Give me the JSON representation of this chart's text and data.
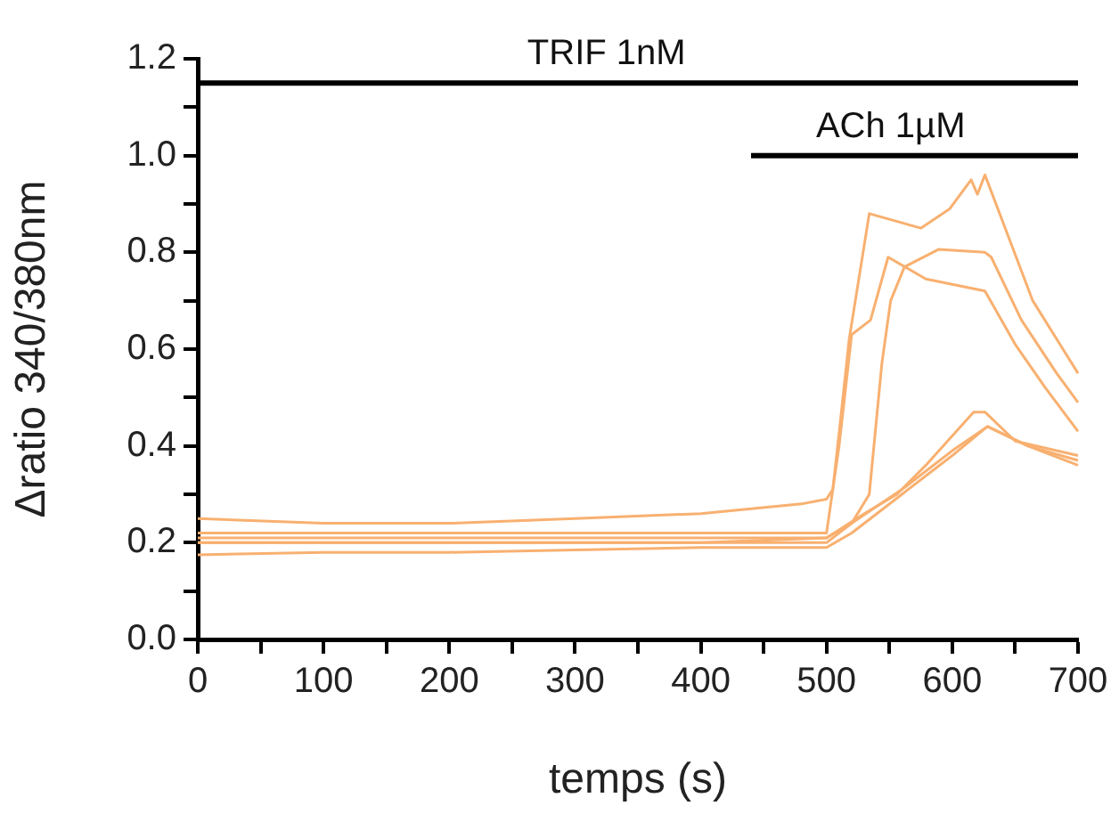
{
  "chart_data": {
    "type": "line",
    "xlabel": "temps (s)",
    "ylabel": "Δratio 340/380nm",
    "xlim": [
      0,
      700
    ],
    "ylim": [
      0,
      1.2
    ],
    "xticks": [
      0,
      {
        "value": 50,
        "label": null
      },
      100,
      {
        "value": 150,
        "label": null
      },
      200,
      {
        "value": 250,
        "label": null
      },
      300,
      {
        "value": 350,
        "label": null
      },
      400,
      {
        "value": 450,
        "label": null
      },
      500,
      {
        "value": 550,
        "label": null
      },
      600,
      {
        "value": 650,
        "label": null
      },
      700
    ],
    "yticks": [
      {
        "value": 0,
        "label": "0.0"
      },
      {
        "value": 0.1,
        "label": null
      },
      0.2,
      {
        "value": 0.3,
        "label": null
      },
      0.4,
      {
        "value": 0.5,
        "label": null
      },
      0.6,
      {
        "value": 0.7,
        "label": null
      },
      0.8,
      {
        "value": 0.9,
        "label": null
      },
      {
        "value": 1.0,
        "label": "1.0"
      },
      {
        "value": 1.1,
        "label": null
      },
      1.2
    ],
    "grid": false,
    "legend": false,
    "marker": "none",
    "line_style": "solid",
    "series": [
      {
        "color": "#f8b070",
        "x": [
          0,
          100,
          200,
          300,
          400,
          480,
          500,
          505,
          511,
          518,
          534,
          575,
          598,
          615,
          620,
          626,
          645,
          664,
          688,
          700
        ],
        "values": [
          0.25,
          0.24,
          0.24,
          0.25,
          0.26,
          0.28,
          0.29,
          0.31,
          0.45,
          0.62,
          0.88,
          0.85,
          0.89,
          0.95,
          0.92,
          0.96,
          0.83,
          0.7,
          0.6,
          0.55
        ]
      },
      {
        "color": "#f8b070",
        "x": [
          0,
          100,
          200,
          300,
          400,
          500,
          510,
          520,
          535,
          549,
          579,
          626,
          650,
          674,
          700
        ],
        "values": [
          0.22,
          0.22,
          0.22,
          0.22,
          0.22,
          0.22,
          0.4,
          0.63,
          0.66,
          0.79,
          0.745,
          0.72,
          0.61,
          0.52,
          0.43
        ]
      },
      {
        "color": "#f8b070",
        "x": [
          0,
          100,
          200,
          300,
          400,
          500,
          520,
          534,
          544,
          551,
          562,
          589,
          626,
          631,
          655,
          683,
          700
        ],
        "values": [
          0.21,
          0.21,
          0.21,
          0.21,
          0.21,
          0.21,
          0.24,
          0.3,
          0.57,
          0.7,
          0.77,
          0.806,
          0.8,
          0.79,
          0.66,
          0.55,
          0.49
        ]
      },
      {
        "color": "#f8b070",
        "x": [
          0,
          100,
          200,
          300,
          400,
          500,
          530,
          556,
          579,
          617,
          626,
          650,
          700
        ],
        "values": [
          0.2,
          0.2,
          0.2,
          0.2,
          0.2,
          0.21,
          0.26,
          0.3,
          0.36,
          0.47,
          0.47,
          0.41,
          0.38
        ]
      },
      {
        "color": "#f8b070",
        "x": [
          0,
          100,
          200,
          300,
          400,
          500,
          520,
          560,
          600,
          628,
          660,
          700
        ],
        "values": [
          0.2,
          0.2,
          0.2,
          0.2,
          0.2,
          0.2,
          0.24,
          0.31,
          0.39,
          0.44,
          0.4,
          0.37
        ]
      },
      {
        "color": "#f8b070",
        "x": [
          0,
          100,
          200,
          300,
          400,
          500,
          520,
          560,
          600,
          628,
          660,
          700
        ],
        "values": [
          0.175,
          0.18,
          0.18,
          0.185,
          0.19,
          0.19,
          0.22,
          0.3,
          0.38,
          0.44,
          0.4,
          0.36
        ]
      },
      {
        "color": "#000000",
        "x": [
          0,
          700
        ],
        "values": [
          1.15,
          1.15
        ]
      },
      {
        "color": "#000000",
        "x": [
          440,
          700
        ],
        "values": [
          1.0,
          1.0
        ]
      }
    ],
    "annotations": [
      {
        "text": "TRIF 1nM",
        "x": 325,
        "y": 1.15
      },
      {
        "text": "ACh 1µM",
        "x": 551,
        "y": 1.0
      }
    ]
  }
}
